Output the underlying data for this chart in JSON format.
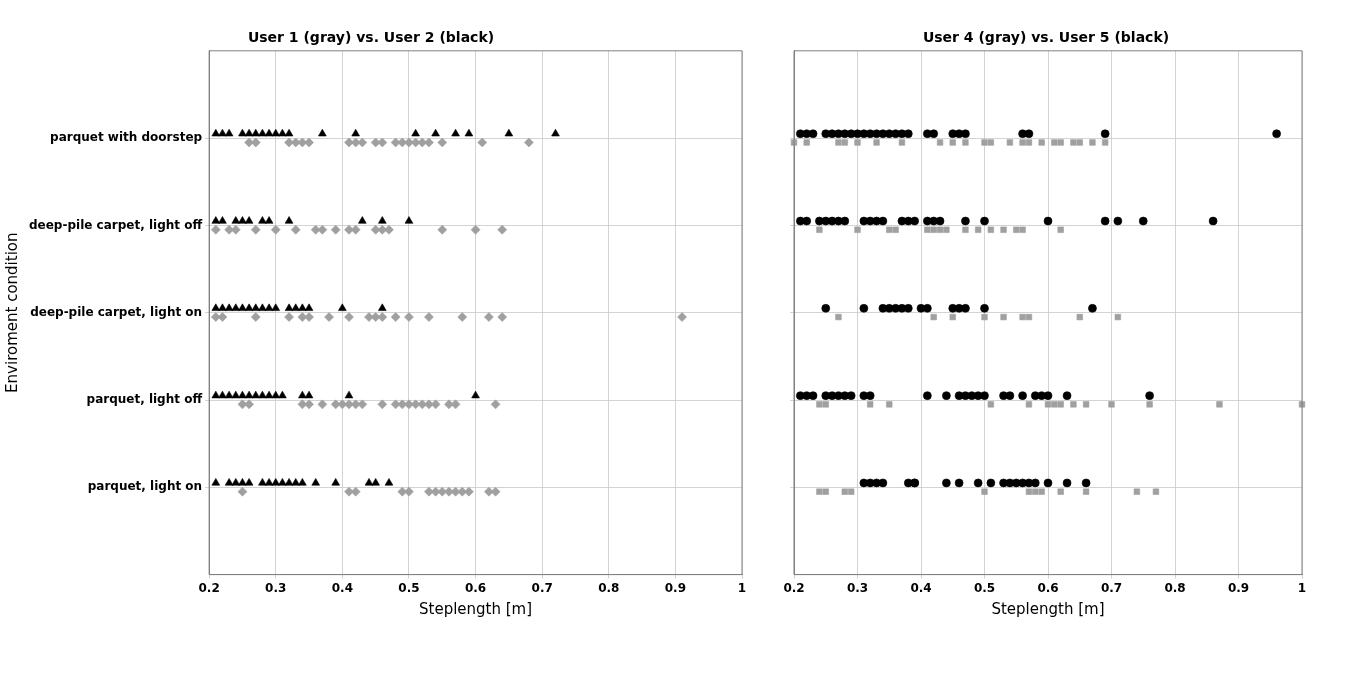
{
  "chart_data": [
    {
      "type": "scatter",
      "orientation": "horizontal",
      "title": "User 1 (gray) vs. User 2 (black)",
      "xlabel": "Steplength [m]",
      "ylabel": "Enviroment condition",
      "xlim": [
        0.2,
        1.0
      ],
      "xticks": [
        0.2,
        0.3,
        0.4,
        0.5,
        0.6,
        0.7,
        0.8,
        0.9,
        1.0
      ],
      "categories": [
        "parquet with doorstep",
        "deep-pile carpet, light off",
        "deep-pile carpet, light on",
        "parquet, light off",
        "parquet, light on"
      ],
      "grid": true,
      "series": [
        {
          "color": "#000000",
          "marker": "triangle",
          "values": [
            0.21,
            0.22,
            0.23,
            0.25,
            0.26,
            0.27,
            0.28,
            0.29,
            0.3,
            0.31,
            0.32,
            0.37,
            0.42,
            0.51,
            0.54,
            0.57,
            0.59,
            0.65,
            0.72,
            0.21,
            0.22,
            0.24,
            0.25,
            0.26,
            0.28,
            0.29,
            0.32,
            0.43,
            0.46,
            0.5,
            0.21,
            0.22,
            0.23,
            0.24,
            0.25,
            0.26,
            0.27,
            0.28,
            0.29,
            0.3,
            0.32,
            0.33,
            0.34,
            0.35,
            0.4,
            0.46,
            0.21,
            0.22,
            0.23,
            0.24,
            0.25,
            0.26,
            0.27,
            0.28,
            0.29,
            0.3,
            0.31,
            0.34,
            0.35,
            0.41,
            0.6,
            0.21,
            0.23,
            0.24,
            0.25,
            0.26,
            0.28,
            0.29,
            0.3,
            0.31,
            0.32,
            0.33,
            0.34,
            0.36,
            0.39,
            0.44,
            0.45,
            0.47
          ],
          "x": [
            "parquet with doorstep",
            "parquet with doorstep",
            "parquet with doorstep",
            "parquet with doorstep",
            "parquet with doorstep",
            "parquet with doorstep",
            "parquet with doorstep",
            "parquet with doorstep",
            "parquet with doorstep",
            "parquet with doorstep",
            "parquet with doorstep",
            "parquet with doorstep",
            "parquet with doorstep",
            "parquet with doorstep",
            "parquet with doorstep",
            "parquet with doorstep",
            "parquet with doorstep",
            "parquet with doorstep",
            "parquet with doorstep",
            "deep-pile carpet, light off",
            "deep-pile carpet, light off",
            "deep-pile carpet, light off",
            "deep-pile carpet, light off",
            "deep-pile carpet, light off",
            "deep-pile carpet, light off",
            "deep-pile carpet, light off",
            "deep-pile carpet, light off",
            "deep-pile carpet, light off",
            "deep-pile carpet, light off",
            "deep-pile carpet, light off",
            "deep-pile carpet, light on",
            "deep-pile carpet, light on",
            "deep-pile carpet, light on",
            "deep-pile carpet, light on",
            "deep-pile carpet, light on",
            "deep-pile carpet, light on",
            "deep-pile carpet, light on",
            "deep-pile carpet, light on",
            "deep-pile carpet, light on",
            "deep-pile carpet, light on",
            "deep-pile carpet, light on",
            "deep-pile carpet, light on",
            "deep-pile carpet, light on",
            "deep-pile carpet, light on",
            "deep-pile carpet, light on",
            "deep-pile carpet, light on",
            "parquet, light off",
            "parquet, light off",
            "parquet, light off",
            "parquet, light off",
            "parquet, light off",
            "parquet, light off",
            "parquet, light off",
            "parquet, light off",
            "parquet, light off",
            "parquet, light off",
            "parquet, light off",
            "parquet, light off",
            "parquet, light off",
            "parquet, light off",
            "parquet, light off",
            "parquet, light on",
            "parquet, light on",
            "parquet, light on",
            "parquet, light on",
            "parquet, light on",
            "parquet, light on",
            "parquet, light on",
            "parquet, light on",
            "parquet, light on",
            "parquet, light on",
            "parquet, light on",
            "parquet, light on",
            "parquet, light on",
            "parquet, light on",
            "parquet, light on",
            "parquet, light on",
            "parquet, light on"
          ]
        },
        {
          "color": "#a0a0a0",
          "marker": "diamond",
          "values": [
            0.26,
            0.27,
            0.32,
            0.33,
            0.34,
            0.35,
            0.41,
            0.42,
            0.43,
            0.45,
            0.46,
            0.48,
            0.49,
            0.5,
            0.51,
            0.52,
            0.53,
            0.55,
            0.61,
            0.68,
            0.21,
            0.23,
            0.24,
            0.27,
            0.3,
            0.33,
            0.36,
            0.37,
            0.39,
            0.41,
            0.42,
            0.45,
            0.46,
            0.47,
            0.55,
            0.6,
            0.64,
            0.21,
            0.22,
            0.27,
            0.32,
            0.34,
            0.35,
            0.38,
            0.41,
            0.44,
            0.45,
            0.46,
            0.48,
            0.5,
            0.53,
            0.58,
            0.62,
            0.64,
            0.91,
            0.25,
            0.26,
            0.34,
            0.35,
            0.37,
            0.39,
            0.4,
            0.41,
            0.42,
            0.43,
            0.46,
            0.48,
            0.49,
            0.5,
            0.51,
            0.52,
            0.53,
            0.54,
            0.56,
            0.57,
            0.63,
            0.25,
            0.41,
            0.42,
            0.49,
            0.5,
            0.53,
            0.54,
            0.55,
            0.56,
            0.57,
            0.58,
            0.59,
            0.62,
            0.63
          ],
          "x": [
            "parquet with doorstep",
            "parquet with doorstep",
            "parquet with doorstep",
            "parquet with doorstep",
            "parquet with doorstep",
            "parquet with doorstep",
            "parquet with doorstep",
            "parquet with doorstep",
            "parquet with doorstep",
            "parquet with doorstep",
            "parquet with doorstep",
            "parquet with doorstep",
            "parquet with doorstep",
            "parquet with doorstep",
            "parquet with doorstep",
            "parquet with doorstep",
            "parquet with doorstep",
            "parquet with doorstep",
            "parquet with doorstep",
            "parquet with doorstep",
            "deep-pile carpet, light off",
            "deep-pile carpet, light off",
            "deep-pile carpet, light off",
            "deep-pile carpet, light off",
            "deep-pile carpet, light off",
            "deep-pile carpet, light off",
            "deep-pile carpet, light off",
            "deep-pile carpet, light off",
            "deep-pile carpet, light off",
            "deep-pile carpet, light off",
            "deep-pile carpet, light off",
            "deep-pile carpet, light off",
            "deep-pile carpet, light off",
            "deep-pile carpet, light off",
            "deep-pile carpet, light off",
            "deep-pile carpet, light off",
            "deep-pile carpet, light off",
            "deep-pile carpet, light on",
            "deep-pile carpet, light on",
            "deep-pile carpet, light on",
            "deep-pile carpet, light on",
            "deep-pile carpet, light on",
            "deep-pile carpet, light on",
            "deep-pile carpet, light on",
            "deep-pile carpet, light on",
            "deep-pile carpet, light on",
            "deep-pile carpet, light on",
            "deep-pile carpet, light on",
            "deep-pile carpet, light on",
            "deep-pile carpet, light on",
            "deep-pile carpet, light on",
            "deep-pile carpet, light on",
            "deep-pile carpet, light on",
            "deep-pile carpet, light on",
            "deep-pile carpet, light on",
            "parquet, light off",
            "parquet, light off",
            "parquet, light off",
            "parquet, light off",
            "parquet, light off",
            "parquet, light off",
            "parquet, light off",
            "parquet, light off",
            "parquet, light off",
            "parquet, light off",
            "parquet, light off",
            "parquet, light off",
            "parquet, light off",
            "parquet, light off",
            "parquet, light off",
            "parquet, light off",
            "parquet, light off",
            "parquet, light off",
            "parquet, light off",
            "parquet, light off",
            "parquet, light off",
            "parquet, light on",
            "parquet, light on",
            "parquet, light on",
            "parquet, light on",
            "parquet, light on",
            "parquet, light on",
            "parquet, light on",
            "parquet, light on",
            "parquet, light on",
            "parquet, light on",
            "parquet, light on",
            "parquet, light on",
            "parquet, light on",
            "parquet, light on"
          ]
        }
      ]
    },
    {
      "type": "scatter",
      "orientation": "horizontal",
      "title": "User 4 (gray) vs. User 5 (black)",
      "xlabel": "Steplength [m]",
      "xlim": [
        0.2,
        1.0
      ],
      "xticks": [
        0.2,
        0.3,
        0.4,
        0.5,
        0.6,
        0.7,
        0.8,
        0.9,
        1.0
      ],
      "categories": [
        "parquet with doorstep",
        "deep-pile carpet, light off",
        "deep-pile carpet, light on",
        "parquet, light off",
        "parquet, light on"
      ],
      "tick_labels": "x",
      "grid": true,
      "series": [
        {
          "color": "#000000",
          "marker": "circle",
          "values": [
            0.21,
            0.22,
            0.23,
            0.25,
            0.26,
            0.27,
            0.28,
            0.29,
            0.3,
            0.31,
            0.32,
            0.33,
            0.34,
            0.35,
            0.36,
            0.37,
            0.38,
            0.41,
            0.42,
            0.45,
            0.46,
            0.47,
            0.56,
            0.57,
            0.69,
            0.96,
            0.21,
            0.22,
            0.24,
            0.25,
            0.26,
            0.27,
            0.28,
            0.31,
            0.32,
            0.33,
            0.34,
            0.37,
            0.38,
            0.39,
            0.41,
            0.42,
            0.43,
            0.47,
            0.5,
            0.6,
            0.69,
            0.71,
            0.75,
            0.86,
            0.25,
            0.31,
            0.34,
            0.35,
            0.36,
            0.37,
            0.38,
            0.4,
            0.41,
            0.45,
            0.46,
            0.47,
            0.5,
            0.67,
            0.21,
            0.22,
            0.23,
            0.25,
            0.26,
            0.27,
            0.28,
            0.29,
            0.31,
            0.32,
            0.41,
            0.44,
            0.46,
            0.47,
            0.48,
            0.49,
            0.5,
            0.53,
            0.54,
            0.56,
            0.58,
            0.59,
            0.6,
            0.63,
            0.76,
            0.31,
            0.32,
            0.33,
            0.34,
            0.38,
            0.39,
            0.39,
            0.44,
            0.46,
            0.49,
            0.51,
            0.53,
            0.54,
            0.55,
            0.56,
            0.57,
            0.58,
            0.6,
            0.63,
            0.66
          ],
          "x": [
            "parquet with doorstep",
            "parquet with doorstep",
            "parquet with doorstep",
            "parquet with doorstep",
            "parquet with doorstep",
            "parquet with doorstep",
            "parquet with doorstep",
            "parquet with doorstep",
            "parquet with doorstep",
            "parquet with doorstep",
            "parquet with doorstep",
            "parquet with doorstep",
            "parquet with doorstep",
            "parquet with doorstep",
            "parquet with doorstep",
            "parquet with doorstep",
            "parquet with doorstep",
            "parquet with doorstep",
            "parquet with doorstep",
            "parquet with doorstep",
            "parquet with doorstep",
            "parquet with doorstep",
            "parquet with doorstep",
            "parquet with doorstep",
            "parquet with doorstep",
            "parquet with doorstep",
            "deep-pile carpet, light off",
            "deep-pile carpet, light off",
            "deep-pile carpet, light off",
            "deep-pile carpet, light off",
            "deep-pile carpet, light off",
            "deep-pile carpet, light off",
            "deep-pile carpet, light off",
            "deep-pile carpet, light off",
            "deep-pile carpet, light off",
            "deep-pile carpet, light off",
            "deep-pile carpet, light off",
            "deep-pile carpet, light off",
            "deep-pile carpet, light off",
            "deep-pile carpet, light off",
            "deep-pile carpet, light off",
            "deep-pile carpet, light off",
            "deep-pile carpet, light off",
            "deep-pile carpet, light off",
            "deep-pile carpet, light off",
            "deep-pile carpet, light off",
            "deep-pile carpet, light off",
            "deep-pile carpet, light off",
            "deep-pile carpet, light off",
            "deep-pile carpet, light off",
            "deep-pile carpet, light on",
            "deep-pile carpet, light on",
            "deep-pile carpet, light on",
            "deep-pile carpet, light on",
            "deep-pile carpet, light on",
            "deep-pile carpet, light on",
            "deep-pile carpet, light on",
            "deep-pile carpet, light on",
            "deep-pile carpet, light on",
            "deep-pile carpet, light on",
            "deep-pile carpet, light on",
            "deep-pile carpet, light on",
            "deep-pile carpet, light on",
            "deep-pile carpet, light on",
            "parquet, light off",
            "parquet, light off",
            "parquet, light off",
            "parquet, light off",
            "parquet, light off",
            "parquet, light off",
            "parquet, light off",
            "parquet, light off",
            "parquet, light off",
            "parquet, light off",
            "parquet, light off",
            "parquet, light off",
            "parquet, light off",
            "parquet, light off",
            "parquet, light off",
            "parquet, light off",
            "parquet, light off",
            "parquet, light off",
            "parquet, light off",
            "parquet, light off",
            "parquet, light off",
            "parquet, light off",
            "parquet, light off",
            "parquet, light off",
            "parquet, light off",
            "parquet, light on",
            "parquet, light on",
            "parquet, light on",
            "parquet, light on",
            "parquet, light on",
            "parquet, light on",
            "parquet, light on",
            "parquet, light on",
            "parquet, light on",
            "parquet, light on",
            "parquet, light on",
            "parquet, light on",
            "parquet, light on",
            "parquet, light on",
            "parquet, light on",
            "parquet, light on",
            "parquet, light on",
            "parquet, light on",
            "parquet, light on",
            "parquet, light on"
          ]
        },
        {
          "color": "#a0a0a0",
          "marker": "square",
          "values": [
            0.2,
            0.22,
            0.27,
            0.28,
            0.3,
            0.33,
            0.37,
            0.43,
            0.45,
            0.47,
            0.5,
            0.51,
            0.54,
            0.56,
            0.57,
            0.59,
            0.61,
            0.62,
            0.64,
            0.65,
            0.67,
            0.69,
            0.24,
            0.3,
            0.35,
            0.36,
            0.41,
            0.42,
            0.43,
            0.44,
            0.47,
            0.49,
            0.51,
            0.53,
            0.55,
            0.56,
            0.62,
            0.27,
            0.42,
            0.45,
            0.5,
            0.53,
            0.56,
            0.57,
            0.65,
            0.71,
            0.24,
            0.25,
            0.32,
            0.35,
            0.51,
            0.57,
            0.6,
            0.61,
            0.62,
            0.64,
            0.66,
            0.7,
            0.76,
            0.87,
            1.0,
            0.24,
            0.25,
            0.28,
            0.29,
            0.5,
            0.57,
            0.58,
            0.59,
            0.62,
            0.66,
            0.74,
            0.77
          ],
          "x": [
            "parquet with doorstep",
            "parquet with doorstep",
            "parquet with doorstep",
            "parquet with doorstep",
            "parquet with doorstep",
            "parquet with doorstep",
            "parquet with doorstep",
            "parquet with doorstep",
            "parquet with doorstep",
            "parquet with doorstep",
            "parquet with doorstep",
            "parquet with doorstep",
            "parquet with doorstep",
            "parquet with doorstep",
            "parquet with doorstep",
            "parquet with doorstep",
            "parquet with doorstep",
            "parquet with doorstep",
            "parquet with doorstep",
            "parquet with doorstep",
            "parquet with doorstep",
            "parquet with doorstep",
            "deep-pile carpet, light off",
            "deep-pile carpet, light off",
            "deep-pile carpet, light off",
            "deep-pile carpet, light off",
            "deep-pile carpet, light off",
            "deep-pile carpet, light off",
            "deep-pile carpet, light off",
            "deep-pile carpet, light off",
            "deep-pile carpet, light off",
            "deep-pile carpet, light off",
            "deep-pile carpet, light off",
            "deep-pile carpet, light off",
            "deep-pile carpet, light off",
            "deep-pile carpet, light off",
            "deep-pile carpet, light off",
            "deep-pile carpet, light on",
            "deep-pile carpet, light on",
            "deep-pile carpet, light on",
            "deep-pile carpet, light on",
            "deep-pile carpet, light on",
            "deep-pile carpet, light on",
            "deep-pile carpet, light on",
            "deep-pile carpet, light on",
            "deep-pile carpet, light on",
            "parquet, light off",
            "parquet, light off",
            "parquet, light off",
            "parquet, light off",
            "parquet, light off",
            "parquet, light off",
            "parquet, light off",
            "parquet, light off",
            "parquet, light off",
            "parquet, light off",
            "parquet, light off",
            "parquet, light off",
            "parquet, light off",
            "parquet, light off",
            "parquet, light off",
            "parquet, light on",
            "parquet, light on",
            "parquet, light on",
            "parquet, light on",
            "parquet, light on",
            "parquet, light on",
            "parquet, light on",
            "parquet, light on",
            "parquet, light on",
            "parquet, light on",
            "parquet, light on",
            "parquet, light on"
          ]
        }
      ]
    }
  ]
}
